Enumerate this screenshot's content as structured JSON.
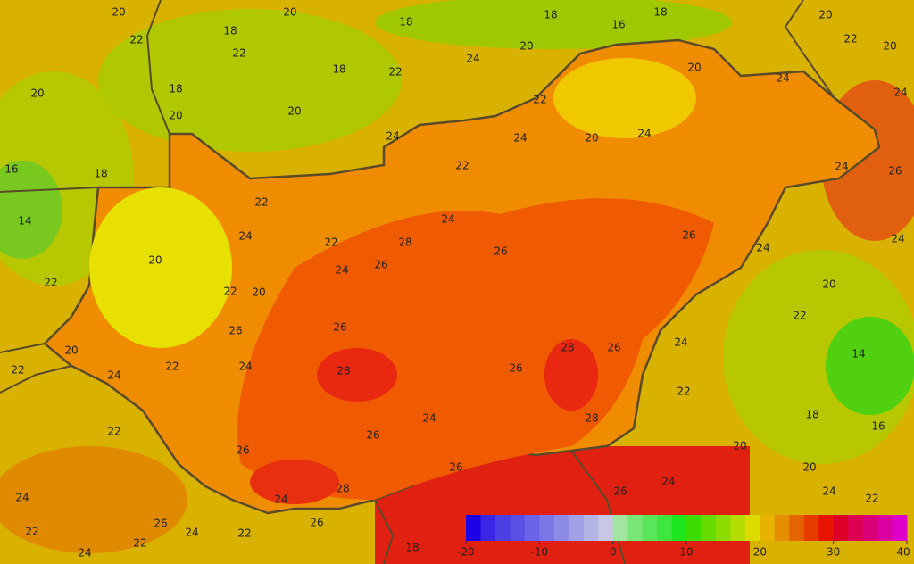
{
  "contour_labels": [
    20,
    22,
    20,
    18,
    18,
    16,
    18,
    20,
    22,
    20,
    20,
    22,
    18,
    18,
    22,
    24,
    20,
    20,
    24,
    24,
    18,
    20,
    20,
    22,
    24,
    20,
    24,
    22,
    24,
    24,
    26,
    16,
    18,
    14,
    22,
    24,
    24,
    22,
    28,
    26,
    26,
    26,
    24,
    24,
    20,
    24,
    22,
    22,
    20,
    20,
    22,
    26,
    26,
    20,
    28,
    26,
    24,
    14,
    22,
    22,
    24,
    28,
    26,
    24,
    22,
    28,
    24,
    18,
    16,
    22,
    26,
    20,
    26,
    26,
    20,
    24,
    28,
    26,
    24,
    24,
    22,
    24,
    26,
    24,
    26,
    22,
    22,
    22,
    24,
    18
  ],
  "colorbar": {
    "ticks": [
      -20,
      -10,
      0,
      10,
      20,
      30,
      40
    ],
    "colors": [
      "#1e00e6",
      "#3a28e6",
      "#4a40e6",
      "#5a50e6",
      "#6a64e6",
      "#7a78e6",
      "#8c8ce6",
      "#a0a0e6",
      "#b4b4e6",
      "#c8c8e6",
      "#a0e6a0",
      "#78e678",
      "#5ae65a",
      "#3ce63c",
      "#1ee61e",
      "#3cdc00",
      "#64dc00",
      "#8cdc00",
      "#b4dc00",
      "#dcdc00",
      "#e6b400",
      "#e68c00",
      "#e66400",
      "#e63c00",
      "#e61400",
      "#dc0028",
      "#dc0050",
      "#dc0078",
      "#dc00a0",
      "#dc00c8"
    ]
  }
}
